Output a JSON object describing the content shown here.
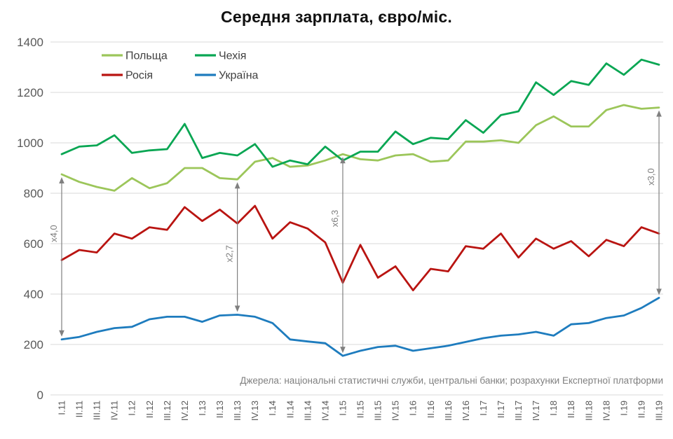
{
  "title": "Середня зарплата, євро/міс.",
  "source_note": "Джерела:  національні статистичні служби, центральні банки; розрахунки Експертної платформи",
  "colors": {
    "poland": "#9CC65A",
    "czechia": "#09A653",
    "russia": "#B91411",
    "ukraine": "#1E7CBE",
    "grid": "#D9D9D9",
    "axis_text": "#595959",
    "annotation": "#808080"
  },
  "chart_data": {
    "type": "line",
    "title": "Середня зарплата, євро/міс.",
    "categories": [
      "I.11",
      "II.11",
      "III.11",
      "IV.11",
      "I.12",
      "II.12",
      "III.12",
      "IV.12",
      "I.13",
      "II.13",
      "III.13",
      "IV.13",
      "I.14",
      "II.14",
      "III.14",
      "IV.14",
      "I.15",
      "II.15",
      "III.15",
      "IV.15",
      "I.16",
      "II.16",
      "III.16",
      "IV.16",
      "I.17",
      "II.17",
      "III.17",
      "IV.17",
      "I.18",
      "II.18",
      "III.18",
      "IV.18",
      "I.19",
      "II.19",
      "III.19"
    ],
    "series": [
      {
        "key": "poland",
        "name": "Польща",
        "color": "#9CC65A",
        "values": [
          875,
          845,
          825,
          810,
          860,
          820,
          840,
          900,
          900,
          860,
          855,
          925,
          940,
          905,
          910,
          930,
          955,
          935,
          930,
          950,
          955,
          925,
          930,
          1005,
          1005,
          1010,
          1000,
          1070,
          1105,
          1065,
          1065,
          1130,
          1150,
          1135,
          1140
        ]
      },
      {
        "key": "czechia",
        "name": "Чехія",
        "color": "#09A653",
        "values": [
          955,
          985,
          990,
          1030,
          960,
          970,
          975,
          1075,
          940,
          960,
          950,
          995,
          905,
          930,
          915,
          985,
          930,
          965,
          965,
          1045,
          995,
          1020,
          1015,
          1090,
          1040,
          1110,
          1125,
          1240,
          1190,
          1245,
          1230,
          1315,
          1270,
          1330,
          1310
        ]
      },
      {
        "key": "russia",
        "name": "Росія",
        "color": "#B91411",
        "values": [
          535,
          575,
          565,
          640,
          620,
          665,
          655,
          745,
          690,
          735,
          680,
          750,
          620,
          685,
          660,
          605,
          445,
          595,
          465,
          510,
          415,
          500,
          490,
          590,
          580,
          640,
          545,
          620,
          580,
          610,
          550,
          615,
          590,
          665,
          640
        ]
      },
      {
        "key": "ukraine",
        "name": "Україна",
        "color": "#1E7CBE",
        "values": [
          220,
          230,
          250,
          265,
          270,
          300,
          310,
          310,
          290,
          315,
          318,
          310,
          285,
          220,
          212,
          205,
          155,
          175,
          190,
          195,
          175,
          185,
          195,
          210,
          225,
          235,
          240,
          250,
          235,
          280,
          285,
          305,
          315,
          345,
          385
        ]
      }
    ],
    "ylim": [
      0,
      1400
    ],
    "ytick_step": 200,
    "grid": true,
    "legend_position": "top-left-inside",
    "annotations": [
      {
        "key": "ratio-2011",
        "label": "x4,0",
        "category": "I.11",
        "from_series": "ukraine",
        "to_series": "poland",
        "label_y_value": 640
      },
      {
        "key": "ratio-2013",
        "label": "x2,7",
        "category": "III.13",
        "from_series": "ukraine",
        "to_series": "poland",
        "label_y_value": 560
      },
      {
        "key": "ratio-2015",
        "label": "x6,3",
        "category": "I.15",
        "from_series": "ukraine",
        "to_series": "poland",
        "label_y_value": 700
      },
      {
        "key": "ratio-2019",
        "label": "x3,0",
        "category": "III.19",
        "from_series": "ukraine",
        "to_series": "poland",
        "label_y_value": 865
      }
    ]
  }
}
